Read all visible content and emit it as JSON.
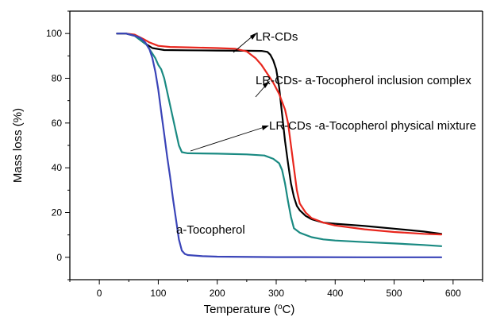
{
  "chart_data": {
    "type": "line",
    "xlabel": "Temperature (°C)",
    "xlabel_parts": [
      "Temperature (",
      "o",
      "C)"
    ],
    "ylabel": "Mass loss (%)",
    "xlim": [
      -50,
      650
    ],
    "ylim": [
      -10,
      110
    ],
    "xticks": [
      0,
      100,
      200,
      300,
      400,
      500,
      600
    ],
    "yticks": [
      0,
      20,
      40,
      60,
      80,
      100
    ],
    "grid": false,
    "legend": "none",
    "series": [
      {
        "key": "lr_cds",
        "color": "#000000",
        "points": [
          [
            30,
            100
          ],
          [
            45,
            100
          ],
          [
            60,
            99
          ],
          [
            75,
            96
          ],
          [
            90,
            93.5
          ],
          [
            110,
            92.6
          ],
          [
            150,
            92.5
          ],
          [
            200,
            92.4
          ],
          [
            250,
            92.3
          ],
          [
            275,
            92.2
          ],
          [
            285,
            91.8
          ],
          [
            290,
            90.5
          ],
          [
            295,
            88
          ],
          [
            300,
            84
          ],
          [
            305,
            76
          ],
          [
            310,
            64
          ],
          [
            315,
            52
          ],
          [
            320,
            42
          ],
          [
            325,
            33
          ],
          [
            330,
            27
          ],
          [
            335,
            23
          ],
          [
            340,
            21
          ],
          [
            350,
            18.5
          ],
          [
            360,
            17
          ],
          [
            380,
            15.5
          ],
          [
            400,
            15
          ],
          [
            450,
            14
          ],
          [
            500,
            12.8
          ],
          [
            550,
            11.5
          ],
          [
            580,
            10.5
          ]
        ]
      },
      {
        "key": "inclusion_complex",
        "color": "#e8261d",
        "points": [
          [
            30,
            100
          ],
          [
            45,
            100
          ],
          [
            60,
            99.5
          ],
          [
            75,
            97.5
          ],
          [
            85,
            96
          ],
          [
            100,
            94.5
          ],
          [
            120,
            94
          ],
          [
            150,
            93.8
          ],
          [
            200,
            93.5
          ],
          [
            230,
            93.2
          ],
          [
            250,
            92
          ],
          [
            265,
            89
          ],
          [
            275,
            86
          ],
          [
            285,
            82
          ],
          [
            295,
            78
          ],
          [
            305,
            73
          ],
          [
            315,
            66
          ],
          [
            320,
            60
          ],
          [
            325,
            50
          ],
          [
            330,
            40
          ],
          [
            335,
            30
          ],
          [
            340,
            24
          ],
          [
            350,
            20
          ],
          [
            360,
            17.5
          ],
          [
            380,
            15.5
          ],
          [
            400,
            14.2
          ],
          [
            450,
            12.5
          ],
          [
            500,
            11.3
          ],
          [
            550,
            10.5
          ],
          [
            580,
            10.2
          ]
        ]
      },
      {
        "key": "physical_mixture",
        "color": "#1a8a82",
        "points": [
          [
            30,
            100
          ],
          [
            45,
            100
          ],
          [
            60,
            99
          ],
          [
            70,
            97
          ],
          [
            80,
            95
          ],
          [
            90,
            91
          ],
          [
            95,
            89
          ],
          [
            100,
            86
          ],
          [
            105,
            84
          ],
          [
            110,
            80
          ],
          [
            115,
            74
          ],
          [
            120,
            68
          ],
          [
            125,
            62
          ],
          [
            130,
            56
          ],
          [
            135,
            50
          ],
          [
            140,
            47
          ],
          [
            150,
            46.5
          ],
          [
            200,
            46.3
          ],
          [
            250,
            46
          ],
          [
            280,
            45.5
          ],
          [
            295,
            44
          ],
          [
            305,
            42
          ],
          [
            310,
            39
          ],
          [
            315,
            33
          ],
          [
            320,
            25
          ],
          [
            325,
            18
          ],
          [
            330,
            13
          ],
          [
            340,
            11
          ],
          [
            360,
            9
          ],
          [
            380,
            8
          ],
          [
            400,
            7.5
          ],
          [
            450,
            6.8
          ],
          [
            500,
            6.2
          ],
          [
            550,
            5.5
          ],
          [
            580,
            5
          ]
        ]
      },
      {
        "key": "a_tocopherol",
        "color": "#3a44b8",
        "points": [
          [
            30,
            100
          ],
          [
            45,
            100
          ],
          [
            60,
            99
          ],
          [
            70,
            98
          ],
          [
            78,
            96
          ],
          [
            85,
            93
          ],
          [
            90,
            89
          ],
          [
            95,
            83
          ],
          [
            100,
            75
          ],
          [
            105,
            65
          ],
          [
            110,
            55
          ],
          [
            115,
            45
          ],
          [
            120,
            36
          ],
          [
            125,
            26
          ],
          [
            130,
            17
          ],
          [
            135,
            8
          ],
          [
            140,
            3
          ],
          [
            145,
            1.5
          ],
          [
            150,
            1
          ],
          [
            175,
            0.5
          ],
          [
            200,
            0.3
          ],
          [
            300,
            0.1
          ],
          [
            450,
            0
          ],
          [
            580,
            0
          ]
        ]
      }
    ],
    "annotations": [
      {
        "key": "lr_cds",
        "text": "LR-CDs"
      },
      {
        "key": "inclusion_complex",
        "text": "LR-CDs- a-Tocopherol inclusion complex"
      },
      {
        "key": "physical_mixture",
        "text": "LR-CDs -a-Tocopherol physical mixture"
      },
      {
        "key": "a_tocopherol",
        "text": "a-Tocopherol"
      }
    ]
  }
}
